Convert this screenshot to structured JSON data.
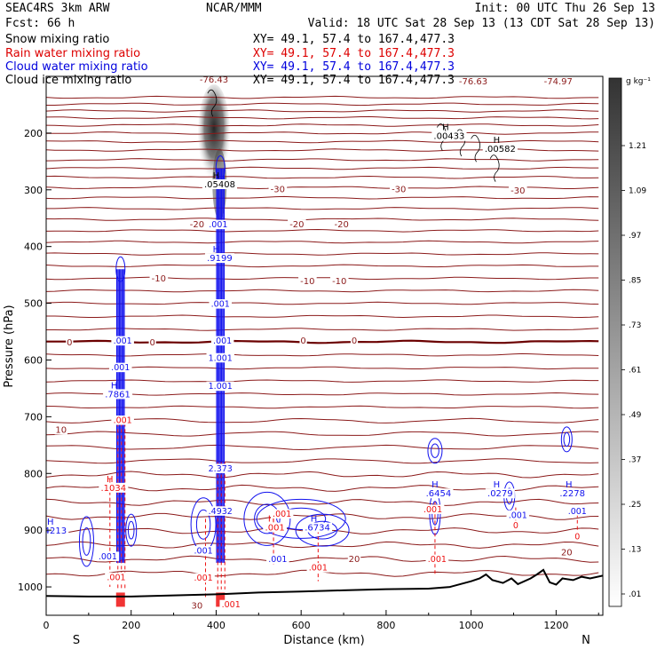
{
  "header": {
    "model": "SEAC4RS  3km ARW",
    "forecast": "Fcst:   66 h",
    "center": "NCAR/MMM",
    "init": "Init: 00 UTC Thu 26 Sep 13",
    "valid": "Valid: 18 UTC Sat 28 Sep 13 (13 CDT Sat 28 Sep 13)"
  },
  "legend": [
    {
      "label": "Snow mixing ratio",
      "xy": "XY=  49.1, 57.4 to 167.4,477.3",
      "color": "#000000"
    },
    {
      "label": "Rain water mixing ratio",
      "xy": "XY=  49.1, 57.4 to 167.4,477.3",
      "color": "#dd0000"
    },
    {
      "label": "Cloud water mixing ratio",
      "xy": "XY=  49.1, 57.4 to 167.4,477.3",
      "color": "#0000dd"
    },
    {
      "label": "Cloud ice mixing ratio",
      "xy": "XY=  49.1, 57.4 to 167.4,477.3",
      "color": "#000000"
    }
  ],
  "colors": {
    "temperature": "#8b1a1a",
    "zero_isotherm": "#6b0000",
    "rain": "#ee1111",
    "cloud": "#1111ee",
    "terrain": "#000000"
  },
  "chart_data": {
    "type": "contour-cross-section",
    "xlabel": "Distance (km)",
    "ylabel": "Pressure (hPa)",
    "xlim": [
      0,
      1310
    ],
    "ylim": [
      1050,
      100
    ],
    "xticks": [
      "0",
      "200",
      "400",
      "600",
      "800",
      "1000",
      "1200"
    ],
    "yticks": [
      "200",
      "300",
      "400",
      "500",
      "600",
      "700",
      "800",
      "900",
      "1000"
    ],
    "x_end_labels": {
      "left": "S",
      "right": "N"
    },
    "colorbar": {
      "unit": "g kg⁻¹",
      "ticks": [
        "1.21",
        "1.09",
        ".97",
        ".85",
        ".73",
        ".61",
        ".49",
        ".37",
        ".25",
        ".13",
        ".01"
      ]
    },
    "temperature_contours": [
      {
        "label": "-76.63",
        "x": 1005,
        "p": 108
      },
      {
        "label": "-74.97",
        "x": 1205,
        "p": 108
      },
      {
        "label": "-76.43",
        "x": 395,
        "p": 105
      },
      {
        "label": "-30",
        "x": 545,
        "p": 298
      },
      {
        "label": "-30",
        "x": 830,
        "p": 298
      },
      {
        "label": "-30",
        "x": 1110,
        "p": 300
      },
      {
        "label": "-20",
        "x": 355,
        "p": 360
      },
      {
        "label": "-20",
        "x": 590,
        "p": 360
      },
      {
        "label": "-20",
        "x": 695,
        "p": 360
      },
      {
        "label": "-10",
        "x": 265,
        "p": 455
      },
      {
        "label": "-10",
        "x": 615,
        "p": 460
      },
      {
        "label": "-10",
        "x": 690,
        "p": 460
      },
      {
        "label": "0",
        "x": 55,
        "p": 568
      },
      {
        "label": "0",
        "x": 250,
        "p": 568
      },
      {
        "label": "0",
        "x": 605,
        "p": 565
      },
      {
        "label": "0",
        "x": 725,
        "p": 565
      },
      {
        "label": "10",
        "x": 35,
        "p": 722
      },
      {
        "label": "20",
        "x": 725,
        "p": 950
      },
      {
        "label": "20",
        "x": 1225,
        "p": 938
      },
      {
        "label": "30",
        "x": 355,
        "p": 1032
      }
    ],
    "temperature_lines_p": [
      137,
      149,
      161,
      173,
      186,
      200,
      215,
      230,
      247,
      262,
      278,
      296,
      314,
      333,
      352,
      372,
      392,
      413,
      434,
      456,
      478,
      500,
      523,
      546,
      568,
      591,
      614,
      637,
      660,
      683,
      707,
      730,
      754,
      778,
      802,
      826,
      851,
      876,
      901,
      926,
      951,
      976
    ],
    "freezing_level_p": 568,
    "snow_maximum": {
      "label": "H",
      "value": ".05408",
      "x": 400,
      "p": 280
    },
    "cloud_ice_maxima": [
      {
        "label": "H",
        "value": ".00433",
        "x": 940,
        "p": 195
      },
      {
        "label": "H",
        "value": ".00582",
        "x": 1060,
        "p": 217
      }
    ],
    "cloud_water_maxima": [
      {
        "label": "H",
        "value": ".9199",
        "x": 400,
        "p": 410
      },
      {
        "label": "H",
        "value": ".7861",
        "x": 160,
        "p": 650
      },
      {
        "label": "H",
        "value": ".6454",
        "x": 915,
        "p": 825
      },
      {
        "label": "H",
        "value": ".0279",
        "x": 1060,
        "p": 825
      },
      {
        "label": "H",
        "value": ".2278",
        "x": 1230,
        "p": 825
      },
      {
        "label": "H",
        "value": ".6734",
        "x": 630,
        "p": 885
      },
      {
        "label": "H",
        "value": ".4213",
        "x": 10,
        "p": 890
      }
    ],
    "rain_maxima": [
      {
        "label": "H",
        "value": ".1034",
        "x": 150,
        "p": 815
      },
      {
        "label": "H",
        "value": ".001",
        "x": 530,
        "p": 885
      }
    ],
    "small_value_labels": [
      {
        "value": ".001",
        "x": 405,
        "p": 360,
        "series": "cloud"
      },
      {
        "value": ".001",
        "x": 410,
        "p": 500,
        "series": "cloud"
      },
      {
        "value": ".001",
        "x": 415,
        "p": 565,
        "series": "cloud"
      },
      {
        "value": "1.001",
        "x": 410,
        "p": 595,
        "series": "cloud"
      },
      {
        "value": "1.001",
        "x": 410,
        "p": 645,
        "series": "cloud"
      },
      {
        "value": ".001",
        "x": 180,
        "p": 565,
        "series": "cloud"
      },
      {
        "value": ".001",
        "x": 175,
        "p": 612,
        "series": "cloud"
      },
      {
        "value": ".001",
        "x": 180,
        "p": 705,
        "series": "rain"
      },
      {
        "value": "2.373",
        "x": 410,
        "p": 790,
        "series": "cloud"
      },
      {
        "value": ".4932",
        "x": 410,
        "p": 865,
        "series": "cloud"
      },
      {
        "value": ".001",
        "x": 910,
        "p": 862,
        "series": "rain"
      },
      {
        "value": ".001",
        "x": 1110,
        "p": 872,
        "series": "cloud"
      },
      {
        "value": ".001",
        "x": 1250,
        "p": 865,
        "series": "cloud"
      },
      {
        "value": "0",
        "x": 1105,
        "p": 890,
        "series": "rain"
      },
      {
        "value": "0",
        "x": 1250,
        "p": 910,
        "series": "rain"
      },
      {
        "value": ".001",
        "x": 145,
        "p": 945,
        "series": "cloud"
      },
      {
        "value": ".001",
        "x": 165,
        "p": 982,
        "series": "rain"
      },
      {
        "value": ".001",
        "x": 370,
        "p": 935,
        "series": "cloud"
      },
      {
        "value": ".001",
        "x": 370,
        "p": 983,
        "series": "rain"
      },
      {
        "value": ".001",
        "x": 435,
        "p": 1030,
        "series": "rain"
      },
      {
        "value": ".001",
        "x": 545,
        "p": 950,
        "series": "cloud"
      },
      {
        "value": ".001",
        "x": 640,
        "p": 965,
        "series": "rain"
      },
      {
        "value": ".001",
        "x": 920,
        "p": 950,
        "series": "rain"
      },
      {
        "value": ".001",
        "x": 555,
        "p": 870,
        "series": "rain"
      }
    ],
    "terrain_p": [
      [
        0,
        1016
      ],
      [
        100,
        1017
      ],
      [
        200,
        1017
      ],
      [
        300,
        1015
      ],
      [
        400,
        1013
      ],
      [
        500,
        1010
      ],
      [
        600,
        1008
      ],
      [
        700,
        1006
      ],
      [
        800,
        1004
      ],
      [
        900,
        1003
      ],
      [
        950,
        1000
      ],
      [
        1000,
        990
      ],
      [
        1020,
        985
      ],
      [
        1035,
        978
      ],
      [
        1050,
        988
      ],
      [
        1075,
        993
      ],
      [
        1095,
        985
      ],
      [
        1110,
        995
      ],
      [
        1140,
        985
      ],
      [
        1155,
        978
      ],
      [
        1170,
        970
      ],
      [
        1185,
        992
      ],
      [
        1200,
        996
      ],
      [
        1215,
        985
      ],
      [
        1240,
        988
      ],
      [
        1260,
        982
      ],
      [
        1280,
        985
      ],
      [
        1310,
        980
      ]
    ],
    "convective_columns": [
      {
        "x": 175,
        "top_p": 440,
        "bottom_p": 1020
      },
      {
        "x": 410,
        "top_p": 262,
        "bottom_p": 1020
      }
    ]
  }
}
